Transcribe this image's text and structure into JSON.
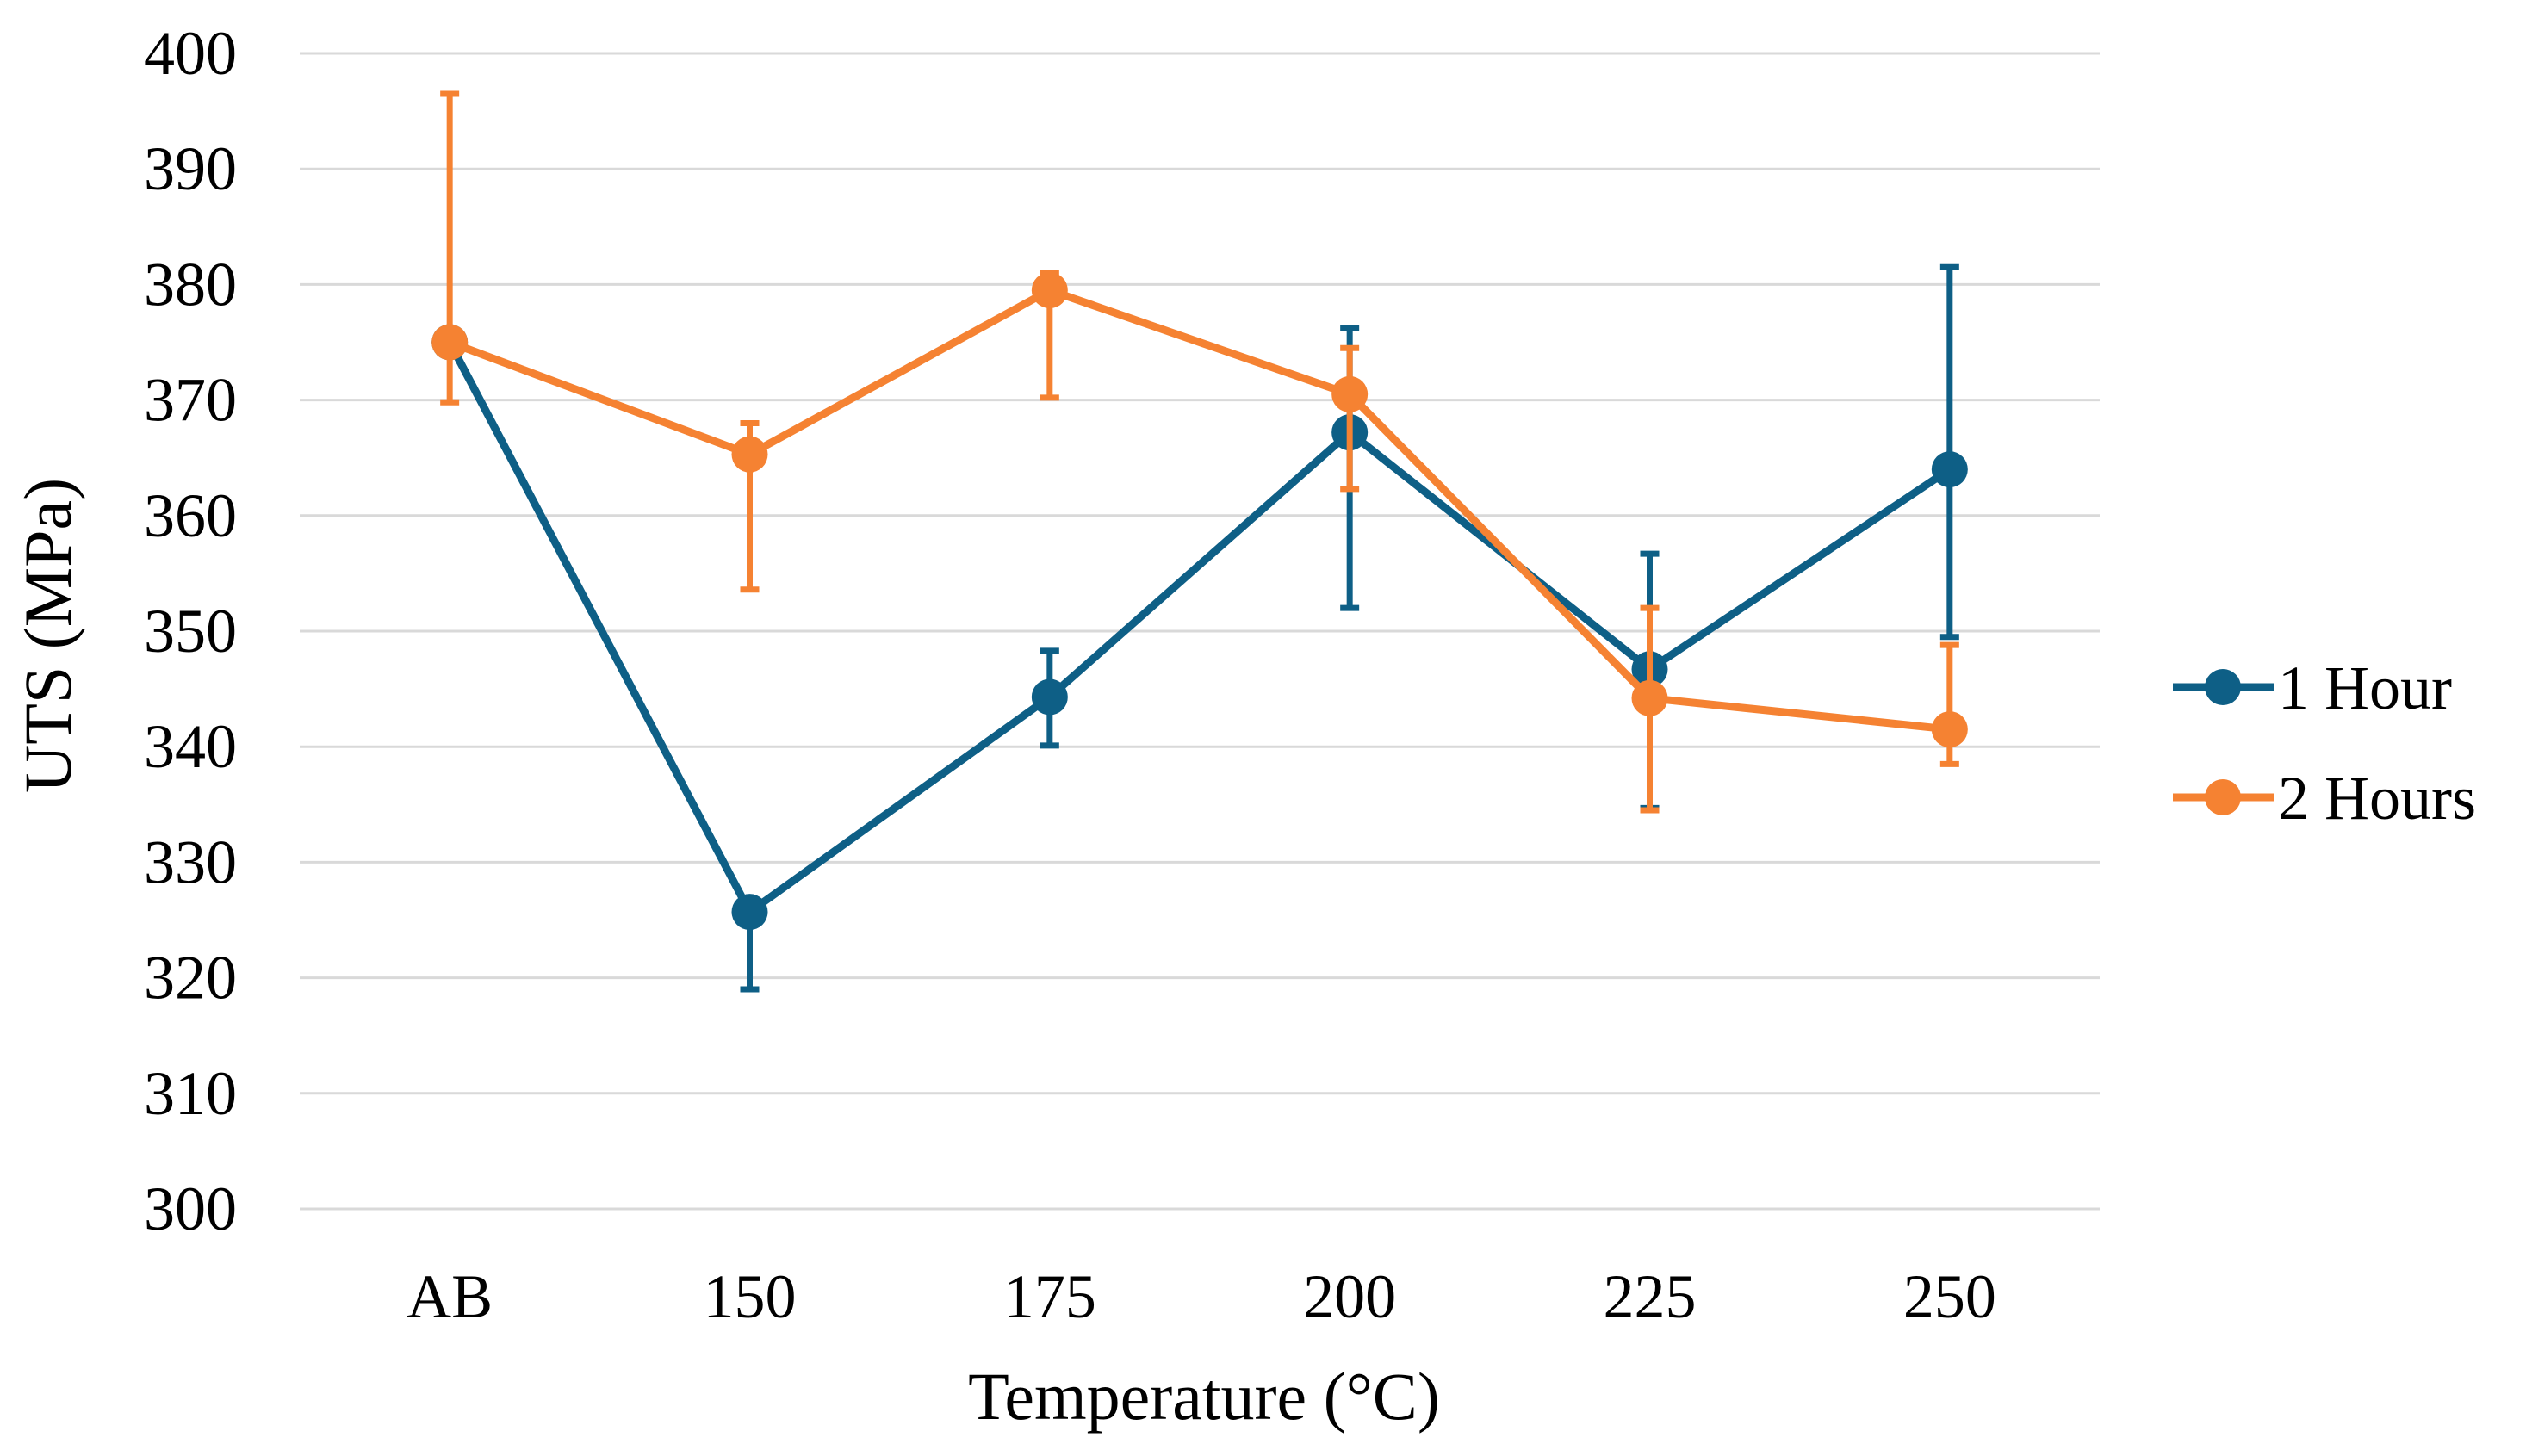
{
  "chart_data": {
    "type": "line",
    "title": "",
    "xlabel": "Temperature (°C)",
    "ylabel": "UTS (MPa)",
    "categories": [
      "AB",
      "150",
      "175",
      "200",
      "225",
      "250"
    ],
    "ylim": [
      300,
      400
    ],
    "ytick_step": 10,
    "yticks": [
      "300",
      "310",
      "320",
      "330",
      "340",
      "350",
      "360",
      "370",
      "380",
      "390",
      "400"
    ],
    "grid": true,
    "legend_position": "right",
    "series": [
      {
        "name": "1 Hour",
        "color": "#0e5f86",
        "values": [
          375,
          325.7,
          344.3,
          367.2,
          346.7,
          364.0
        ],
        "error_upper": [
          0,
          1,
          4,
          9,
          10,
          17.5
        ],
        "error_lower": [
          0,
          6.7,
          4.2,
          15.2,
          12,
          14.5
        ]
      },
      {
        "name": "2 Hours",
        "color": "#f58232",
        "values": [
          375,
          365.3,
          379.5,
          370.5,
          344.2,
          341.5
        ],
        "error_upper": [
          21.5,
          2.7,
          1.5,
          4,
          7.8,
          7.3
        ],
        "error_lower": [
          5.2,
          11.7,
          9.3,
          8.2,
          9.7,
          3
        ]
      }
    ]
  }
}
